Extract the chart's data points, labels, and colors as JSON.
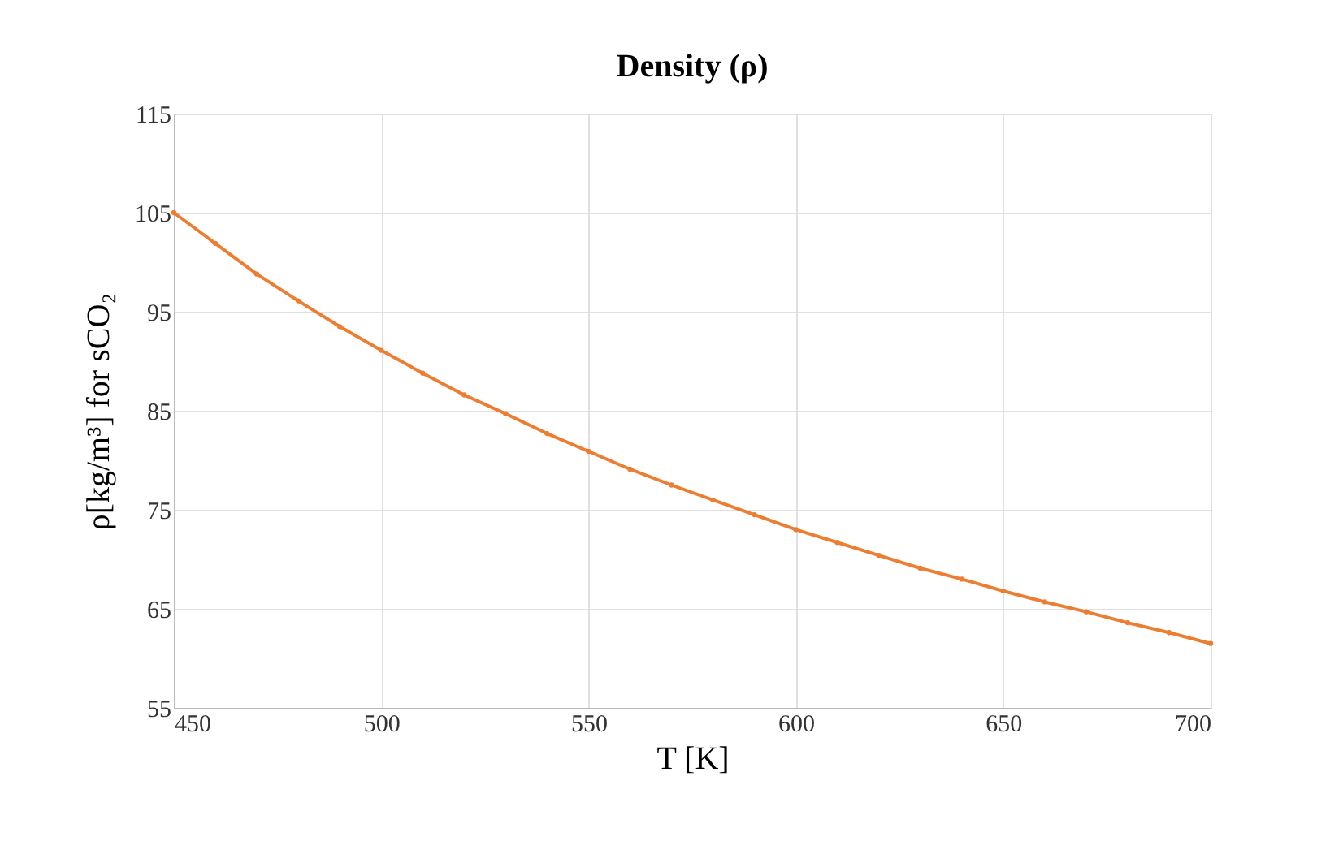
{
  "chart_data": {
    "type": "line",
    "title": "Density (ρ)",
    "xlabel": "T [K]",
    "ylabel": "ρ[kg/m³] for sCO₂",
    "x": [
      450,
      460,
      470,
      480,
      490,
      500,
      510,
      520,
      530,
      540,
      550,
      560,
      570,
      580,
      590,
      600,
      610,
      620,
      630,
      640,
      650,
      660,
      670,
      680,
      690,
      700
    ],
    "series": [
      {
        "color": "#ed7d31",
        "values": [
          105.0,
          101.9,
          98.8,
          96.1,
          93.5,
          91.1,
          88.8,
          86.6,
          84.7,
          82.7,
          80.9,
          79.1,
          77.5,
          76.0,
          74.5,
          73.0,
          71.7,
          70.4,
          69.1,
          68.0,
          66.8,
          65.7,
          64.7,
          63.6,
          62.6,
          61.5
        ]
      }
    ],
    "xlim": [
      450,
      700
    ],
    "xticks": [
      450,
      500,
      550,
      600,
      650,
      700
    ],
    "ylim": [
      55,
      115
    ],
    "yticks": [
      55,
      65,
      75,
      85,
      95,
      105,
      115
    ],
    "grid": true,
    "marker": "circle",
    "line_style": "solid"
  }
}
